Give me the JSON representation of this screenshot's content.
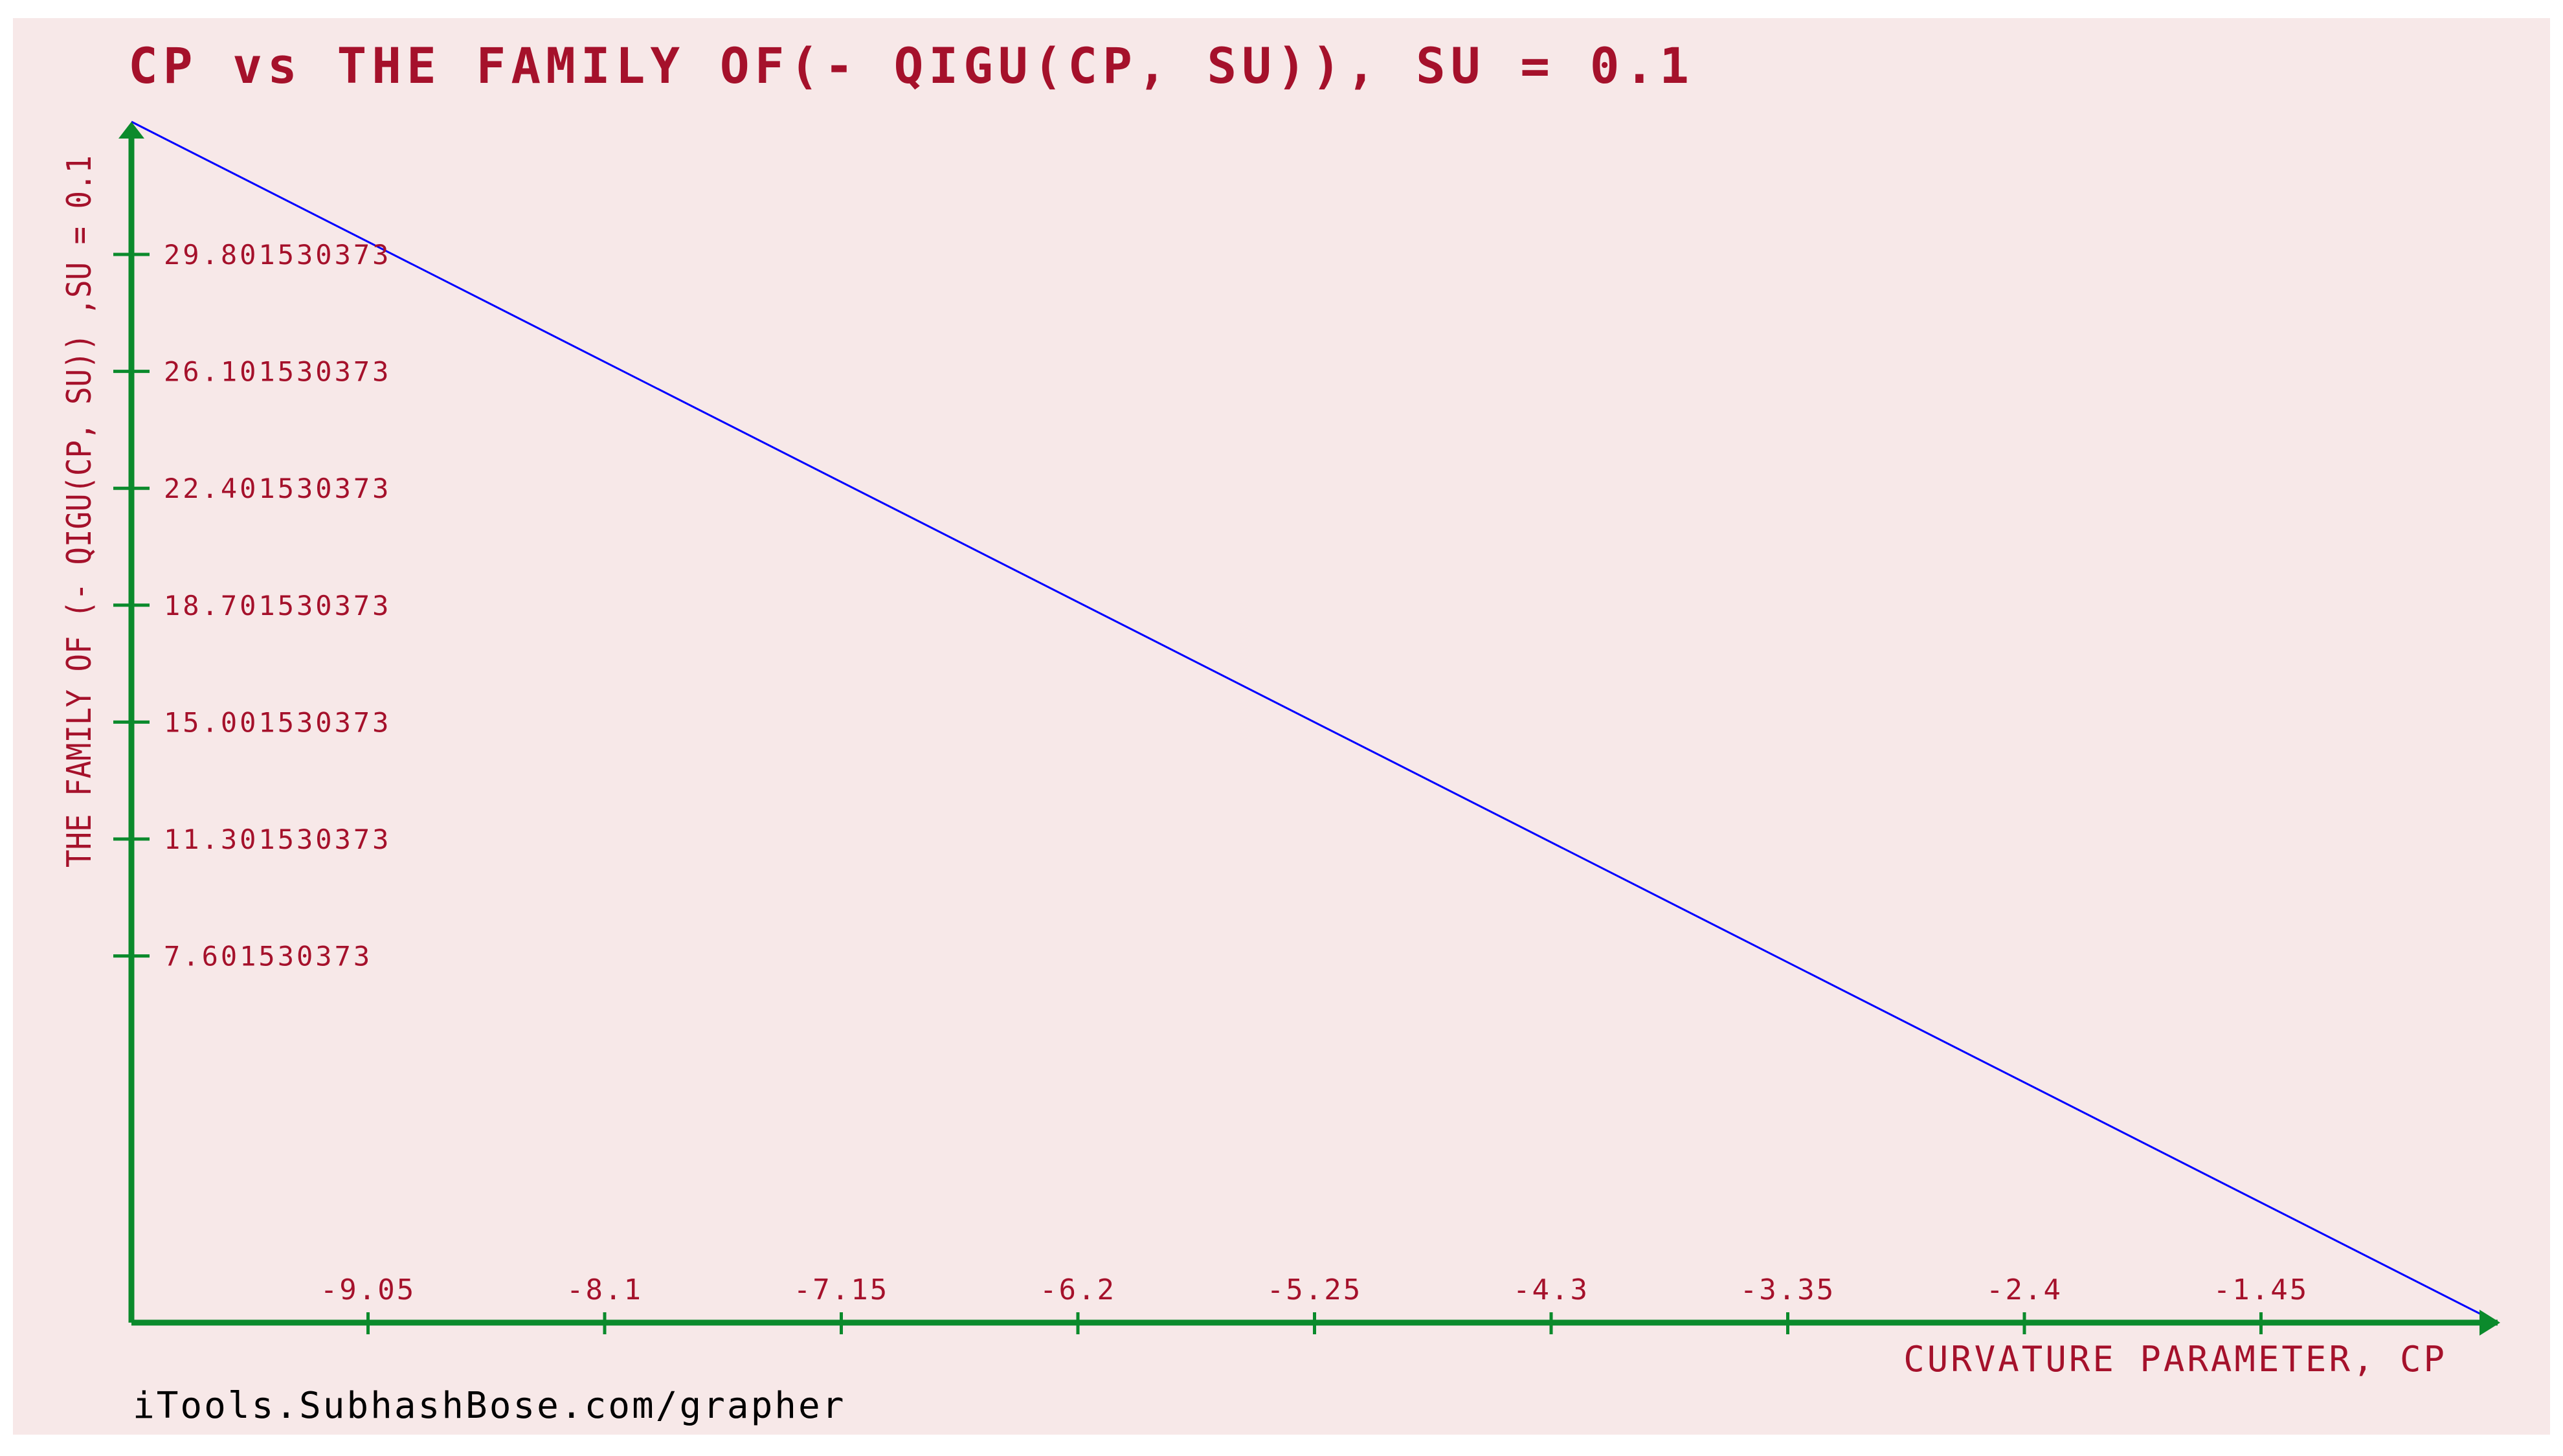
{
  "chart_data": {
    "type": "line",
    "title": "CP vs THE FAMILY OF(- QIGU(CP, SU)), SU = 0.1",
    "xlabel": "CURVATURE PARAMETER, CP",
    "ylabel": "THE FAMILY OF (- QIGU(CP, SU)) ,SU = 0.1",
    "footer": "iTools.SubhashBose.com/grapher",
    "x_ticks": [
      -9.05,
      -8.1,
      -7.15,
      -6.2,
      -5.25,
      -4.3,
      -3.35,
      -2.4,
      -1.45
    ],
    "x_tick_labels": [
      "-9.05",
      "-8.1",
      "-7.15",
      "-6.2",
      "-5.25",
      "-4.3",
      "-3.35",
      "-2.4",
      "-1.45"
    ],
    "y_ticks": [
      29.801530373,
      26.101530373,
      22.401530373,
      18.701530373,
      15.001530373,
      11.301530373,
      7.601530373
    ],
    "y_tick_labels": [
      "29.801530373",
      "26.101530373",
      "22.401530373",
      "18.701530373",
      "15.001530373",
      "11.301530373",
      "7.601530373"
    ],
    "xlim": [
      -10.0,
      -0.5
    ],
    "ylim": [
      -4.0,
      34.0
    ],
    "grid": false,
    "series": [
      {
        "color": "#0000ff",
        "x": [
          -10.0,
          -0.5
        ],
        "y": [
          34.0,
          -4.0
        ]
      }
    ],
    "colors": {
      "background": "#f7e8e8",
      "axis": "#0b8a2c",
      "text": "#a5112b",
      "line": "#0000ff"
    }
  }
}
